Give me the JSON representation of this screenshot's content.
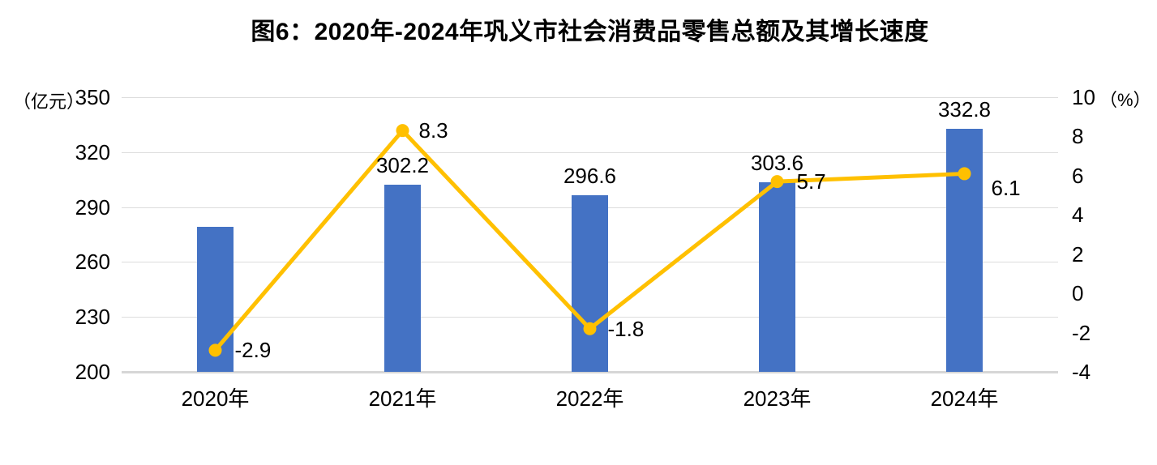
{
  "title": "图6：2020年-2024年巩义市社会消费品零售总额及其增长速度",
  "colors": {
    "bar": "#4472C4",
    "line": "#FFC000",
    "gridline": "#DCDCDC",
    "axis_line": "#D6D6D6",
    "text": "#000000",
    "background": "#FFFFFF"
  },
  "chart_data": {
    "type": "bar",
    "subtype": "bar+line combo, dual axis",
    "title": "图6：2020年-2024年巩义市社会消费品零售总额及其增长速度",
    "categories": [
      "2020年",
      "2021年",
      "2022年",
      "2023年",
      "2024年"
    ],
    "series": [
      {
        "name": "社会消费品零售总额",
        "type": "bar",
        "axis": "left",
        "color": "#4472C4",
        "values": [
          279,
          302.2,
          296.6,
          303.6,
          332.8
        ],
        "labels": [
          null,
          "302.2",
          "296.6",
          "303.6",
          "332.8"
        ]
      },
      {
        "name": "增长速度",
        "type": "line",
        "axis": "right",
        "color": "#FFC000",
        "values": [
          -2.9,
          8.3,
          -1.8,
          5.7,
          6.1
        ],
        "labels": [
          "-2.9",
          "8.3",
          "-1.8",
          "5.7",
          "6.1"
        ],
        "label_offsets": [
          [
            24,
            0
          ],
          [
            20,
            0
          ],
          [
            22,
            0
          ],
          [
            24,
            0
          ],
          [
            33,
            18
          ]
        ]
      }
    ],
    "left_axis": {
      "unit": "（亿元）",
      "min": 200,
      "max": 350,
      "ticks": [
        350,
        320,
        290,
        260,
        230,
        200
      ]
    },
    "right_axis": {
      "unit": "（%）",
      "min": -4,
      "max": 10,
      "ticks": [
        10,
        8,
        6,
        4,
        2,
        0,
        -2,
        -4
      ]
    },
    "grid": true,
    "legend": false,
    "notes": "2020 bar has no printed data label; value estimated from gridlines"
  }
}
